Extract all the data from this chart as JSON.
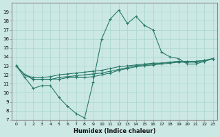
{
  "title": "",
  "xlabel": "Humidex (Indice chaleur)",
  "ylabel": "",
  "bg_color": "#cce8e4",
  "line_color": "#2a7a6a",
  "xlim": [
    -0.5,
    23.5
  ],
  "ylim": [
    7,
    20
  ],
  "xticks": [
    0,
    1,
    2,
    3,
    4,
    5,
    6,
    7,
    8,
    9,
    10,
    11,
    12,
    13,
    14,
    15,
    16,
    17,
    18,
    19,
    20,
    21,
    22,
    23
  ],
  "yticks": [
    7,
    8,
    9,
    10,
    11,
    12,
    13,
    14,
    15,
    16,
    17,
    18,
    19
  ],
  "grid_color": "#a8d8cc",
  "series1": [
    [
      0,
      13
    ],
    [
      1,
      11.7
    ],
    [
      2,
      10.5
    ],
    [
      3,
      10.8
    ],
    [
      4,
      10.8
    ],
    [
      5,
      9.5
    ],
    [
      6,
      8.5
    ],
    [
      7,
      7.7
    ],
    [
      8,
      7.2
    ],
    [
      9,
      11.2
    ],
    [
      10,
      16.0
    ],
    [
      11,
      18.2
    ],
    [
      12,
      19.2
    ],
    [
      13,
      17.7
    ],
    [
      14,
      18.5
    ],
    [
      15,
      17.5
    ],
    [
      16,
      17.0
    ],
    [
      17,
      14.5
    ],
    [
      18,
      14.0
    ],
    [
      19,
      13.8
    ],
    [
      20,
      13.2
    ],
    [
      21,
      13.2
    ],
    [
      22,
      13.5
    ],
    [
      23,
      13.8
    ]
  ],
  "series2": [
    [
      0,
      13.0
    ],
    [
      1,
      12.0
    ],
    [
      2,
      11.5
    ],
    [
      3,
      11.5
    ],
    [
      4,
      11.5
    ],
    [
      5,
      11.5
    ],
    [
      6,
      11.7
    ],
    [
      7,
      11.7
    ],
    [
      8,
      11.7
    ],
    [
      9,
      11.8
    ],
    [
      10,
      12.0
    ],
    [
      11,
      12.2
    ],
    [
      12,
      12.5
    ],
    [
      13,
      12.7
    ],
    [
      14,
      12.9
    ],
    [
      15,
      13.0
    ],
    [
      16,
      13.1
    ],
    [
      17,
      13.2
    ],
    [
      18,
      13.3
    ],
    [
      19,
      13.4
    ],
    [
      20,
      13.4
    ],
    [
      21,
      13.4
    ],
    [
      22,
      13.5
    ],
    [
      23,
      13.8
    ]
  ],
  "series3": [
    [
      0,
      13.0
    ],
    [
      1,
      12.0
    ],
    [
      2,
      11.5
    ],
    [
      3,
      11.5
    ],
    [
      4,
      11.5
    ],
    [
      5,
      11.7
    ],
    [
      6,
      11.8
    ],
    [
      7,
      11.9
    ],
    [
      8,
      12.0
    ],
    [
      9,
      12.1
    ],
    [
      10,
      12.2
    ],
    [
      11,
      12.4
    ],
    [
      12,
      12.6
    ],
    [
      13,
      12.8
    ],
    [
      14,
      13.0
    ],
    [
      15,
      13.1
    ],
    [
      16,
      13.2
    ],
    [
      17,
      13.3
    ],
    [
      18,
      13.4
    ],
    [
      19,
      13.5
    ],
    [
      20,
      13.5
    ],
    [
      21,
      13.5
    ],
    [
      22,
      13.6
    ],
    [
      23,
      13.8
    ]
  ],
  "series4": [
    [
      0,
      13.0
    ],
    [
      1,
      12.0
    ],
    [
      2,
      11.7
    ],
    [
      3,
      11.7
    ],
    [
      4,
      11.8
    ],
    [
      5,
      12.0
    ],
    [
      6,
      12.1
    ],
    [
      7,
      12.2
    ],
    [
      8,
      12.3
    ],
    [
      9,
      12.4
    ],
    [
      10,
      12.5
    ],
    [
      11,
      12.7
    ],
    [
      12,
      12.9
    ],
    [
      13,
      13.0
    ],
    [
      14,
      13.1
    ],
    [
      15,
      13.2
    ],
    [
      16,
      13.3
    ],
    [
      17,
      13.3
    ],
    [
      18,
      13.4
    ],
    [
      19,
      13.5
    ],
    [
      20,
      13.5
    ],
    [
      21,
      13.5
    ],
    [
      22,
      13.6
    ],
    [
      23,
      13.8
    ]
  ]
}
